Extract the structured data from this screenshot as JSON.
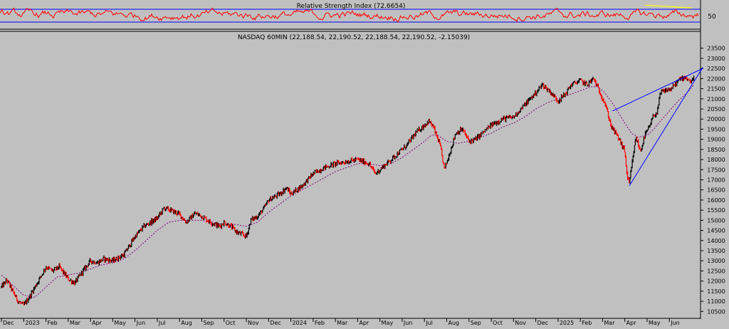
{
  "rsi_panel": {
    "title": "Relative Strength Index (72.6654)",
    "level_label": "50",
    "upper_band": 70,
    "lower_band": 30,
    "line_color": "#ff0000",
    "band_color": "#0000ff",
    "trend_color": "#ffff00"
  },
  "price_panel": {
    "title": "NASDAQ 60MIN (22,188.54, 22,190.52, 22,188.54, 22,190.52, -2.15039)"
  },
  "chart_data": {
    "type": "line",
    "title": "NASDAQ 60MIN (22,188.54, 22,190.52, 22,188.54, 22,190.52, -2.15039)",
    "xlabel": "",
    "ylabel": "",
    "ylim": [
      10300,
      23700
    ],
    "grid": false,
    "x_tick_labels": [
      "Dec",
      "2023",
      "Feb",
      "Mar",
      "Apr",
      "May",
      "Jun",
      "Jul",
      "Aug",
      "Sep",
      "Oct",
      "Nov",
      "Dec",
      "2024",
      "Feb",
      "Mar",
      "Apr",
      "May",
      "Jun",
      "Jul",
      "Aug",
      "Sep",
      "Oct",
      "Nov",
      "Dec",
      "2025",
      "Feb",
      "Mar",
      "Apr",
      "May",
      "Jun"
    ],
    "y_tick_labels": [
      10500,
      11000,
      11500,
      12000,
      12500,
      13000,
      13500,
      14000,
      14500,
      15000,
      15500,
      16000,
      16500,
      17000,
      17500,
      18000,
      18500,
      19000,
      19500,
      20000,
      20500,
      21000,
      21500,
      22000,
      22500,
      23000,
      23500
    ],
    "x_months": [
      0,
      1,
      2,
      3,
      4,
      5,
      6,
      7,
      8,
      9,
      10,
      11,
      12,
      13,
      14,
      15,
      16,
      17,
      18,
      19,
      20,
      21,
      22,
      23,
      24,
      25,
      26,
      27,
      28,
      29,
      30
    ],
    "series": [
      {
        "name": "NASDAQ 60MIN",
        "color": "#000000",
        "points": [
          [
            0,
            11700
          ],
          [
            0.25,
            12050
          ],
          [
            0.5,
            11500
          ],
          [
            0.75,
            11000
          ],
          [
            1,
            10800
          ],
          [
            1.25,
            11200
          ],
          [
            1.6,
            11900
          ],
          [
            2,
            12700
          ],
          [
            2.3,
            12500
          ],
          [
            2.6,
            12700
          ],
          [
            3,
            12100
          ],
          [
            3.3,
            11900
          ],
          [
            3.6,
            12400
          ],
          [
            4,
            13000
          ],
          [
            4.3,
            12900
          ],
          [
            4.6,
            13100
          ],
          [
            5,
            13000
          ],
          [
            5.5,
            13300
          ],
          [
            6,
            14200
          ],
          [
            6.4,
            14700
          ],
          [
            7,
            15100
          ],
          [
            7.3,
            15600
          ],
          [
            7.6,
            15500
          ],
          [
            8,
            15300
          ],
          [
            8.3,
            14900
          ],
          [
            8.7,
            15350
          ],
          [
            9,
            15200
          ],
          [
            9.4,
            14900
          ],
          [
            9.8,
            14700
          ],
          [
            10,
            14900
          ],
          [
            10.3,
            14700
          ],
          [
            10.6,
            14400
          ],
          [
            11,
            14200
          ],
          [
            11.2,
            15000
          ],
          [
            11.5,
            15200
          ],
          [
            11.8,
            15600
          ],
          [
            12,
            16000
          ],
          [
            12.5,
            16300
          ],
          [
            12.8,
            16600
          ],
          [
            13,
            16300
          ],
          [
            13.5,
            16700
          ],
          [
            14,
            17300
          ],
          [
            14.5,
            17600
          ],
          [
            15,
            17800
          ],
          [
            15.5,
            17900
          ],
          [
            16,
            18000
          ],
          [
            16.5,
            17800
          ],
          [
            16.8,
            17300
          ],
          [
            17,
            17500
          ],
          [
            17.4,
            17900
          ],
          [
            17.8,
            18300
          ],
          [
            18.2,
            18700
          ],
          [
            18.6,
            19300
          ],
          [
            19,
            19700
          ],
          [
            19.2,
            19900
          ],
          [
            19.4,
            19600
          ],
          [
            19.7,
            18700
          ],
          [
            19.9,
            17500
          ],
          [
            20.1,
            18200
          ],
          [
            20.4,
            19300
          ],
          [
            20.7,
            19500
          ],
          [
            21,
            18900
          ],
          [
            21.3,
            19000
          ],
          [
            21.6,
            19300
          ],
          [
            22,
            19700
          ],
          [
            22.5,
            20000
          ],
          [
            23,
            20100
          ],
          [
            23.5,
            20700
          ],
          [
            24,
            21300
          ],
          [
            24.3,
            21700
          ],
          [
            24.6,
            21400
          ],
          [
            25,
            20900
          ],
          [
            25.3,
            21200
          ],
          [
            25.6,
            21700
          ],
          [
            26,
            21900
          ],
          [
            26.3,
            21700
          ],
          [
            26.6,
            22000
          ],
          [
            26.8,
            21500
          ],
          [
            27.1,
            20800
          ],
          [
            27.4,
            19600
          ],
          [
            27.7,
            19100
          ],
          [
            28,
            18400
          ],
          [
            28.1,
            17200
          ],
          [
            28.2,
            16800
          ],
          [
            28.35,
            18000
          ],
          [
            28.5,
            19100
          ],
          [
            28.7,
            18400
          ],
          [
            28.9,
            19200
          ],
          [
            29.1,
            19600
          ],
          [
            29.3,
            20200
          ],
          [
            29.45,
            20300
          ],
          [
            29.6,
            21300
          ],
          [
            29.8,
            21400
          ],
          [
            30.1,
            21500
          ],
          [
            30.4,
            21900
          ],
          [
            30.7,
            22100
          ],
          [
            31,
            21800
          ],
          [
            31.1,
            22190
          ]
        ]
      },
      {
        "name": "Moving Average",
        "color": "#800080",
        "style": "dotted",
        "points": [
          [
            0,
            12300
          ],
          [
            0.5,
            11800
          ],
          [
            1,
            11300
          ],
          [
            1.5,
            11200
          ],
          [
            2,
            11700
          ],
          [
            2.5,
            12200
          ],
          [
            3,
            12300
          ],
          [
            3.5,
            12400
          ],
          [
            4,
            12600
          ],
          [
            4.5,
            12800
          ],
          [
            5,
            12900
          ],
          [
            5.5,
            13100
          ],
          [
            6,
            13500
          ],
          [
            6.5,
            14000
          ],
          [
            7,
            14500
          ],
          [
            7.5,
            14900
          ],
          [
            8,
            15000
          ],
          [
            8.5,
            15000
          ],
          [
            9,
            15000
          ],
          [
            9.5,
            14900
          ],
          [
            10,
            14800
          ],
          [
            10.5,
            14800
          ],
          [
            11,
            14700
          ],
          [
            11.5,
            14900
          ],
          [
            12,
            15400
          ],
          [
            12.5,
            15800
          ],
          [
            13,
            16200
          ],
          [
            13.5,
            16500
          ],
          [
            14,
            16800
          ],
          [
            14.5,
            17100
          ],
          [
            15,
            17400
          ],
          [
            15.5,
            17600
          ],
          [
            16,
            17800
          ],
          [
            16.5,
            17800
          ],
          [
            17,
            17700
          ],
          [
            17.5,
            17800
          ],
          [
            18,
            18100
          ],
          [
            18.5,
            18500
          ],
          [
            19,
            18900
          ],
          [
            19.3,
            19200
          ],
          [
            19.6,
            19200
          ],
          [
            20,
            18900
          ],
          [
            20.5,
            18800
          ],
          [
            21,
            18900
          ],
          [
            21.5,
            19100
          ],
          [
            22,
            19300
          ],
          [
            22.5,
            19600
          ],
          [
            23,
            19800
          ],
          [
            23.5,
            20100
          ],
          [
            24,
            20500
          ],
          [
            24.5,
            20800
          ],
          [
            25,
            21000
          ],
          [
            25.5,
            21200
          ],
          [
            26,
            21400
          ],
          [
            26.5,
            21600
          ],
          [
            26.8,
            21600
          ],
          [
            27.1,
            21300
          ],
          [
            27.5,
            20700
          ],
          [
            28,
            19800
          ],
          [
            28.3,
            19300
          ],
          [
            28.6,
            19100
          ],
          [
            29,
            19200
          ],
          [
            29.3,
            19500
          ],
          [
            29.6,
            19900
          ],
          [
            30,
            20400
          ],
          [
            30.4,
            20900
          ],
          [
            30.8,
            21300
          ],
          [
            31.1,
            21700
          ]
        ]
      }
    ],
    "trendlines": [
      {
        "name": "upper",
        "from": [
          27.45,
          20400
        ],
        "to": [
          31.5,
          22500
        ]
      },
      {
        "name": "lower",
        "from": [
          28.2,
          16700
        ],
        "to": [
          31.5,
          22550
        ]
      }
    ],
    "rsi_trendline": {
      "from": [
        28.9,
        86
      ],
      "to": [
        31,
        76
      ]
    }
  }
}
